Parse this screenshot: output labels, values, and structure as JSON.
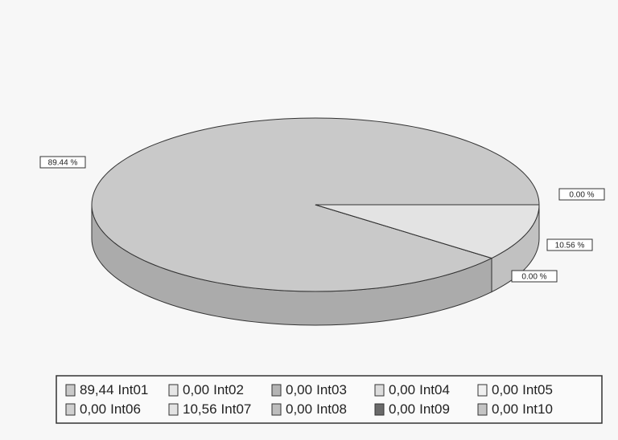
{
  "chart_data": {
    "type": "pie",
    "categories": [
      "Int01",
      "Int02",
      "Int03",
      "Int04",
      "Int05",
      "Int06",
      "Int07",
      "Int08",
      "Int09",
      "Int10"
    ],
    "values": [
      89.44,
      0,
      0,
      0,
      0,
      0,
      10.56,
      0,
      0,
      0
    ],
    "value_labels": [
      "89.44 %",
      "0.00 %",
      null,
      null,
      null,
      null,
      "10.56 %",
      "0.00 %",
      null,
      null
    ],
    "legend_value_labels": [
      "89,44",
      "0,00",
      "0,00",
      "0,00",
      "0,00",
      "0,00",
      "10,56",
      "0,00",
      "0,00",
      "0,00"
    ],
    "colors": [
      "#c9c9c9",
      "#e6e6e6",
      "#b4b4b4",
      "#dcdcdc",
      "#f0f0f0",
      "#d0d0d0",
      "#e3e3e3",
      "#bdbdbd",
      "#6a6a6a",
      "#c4c4c4"
    ]
  }
}
